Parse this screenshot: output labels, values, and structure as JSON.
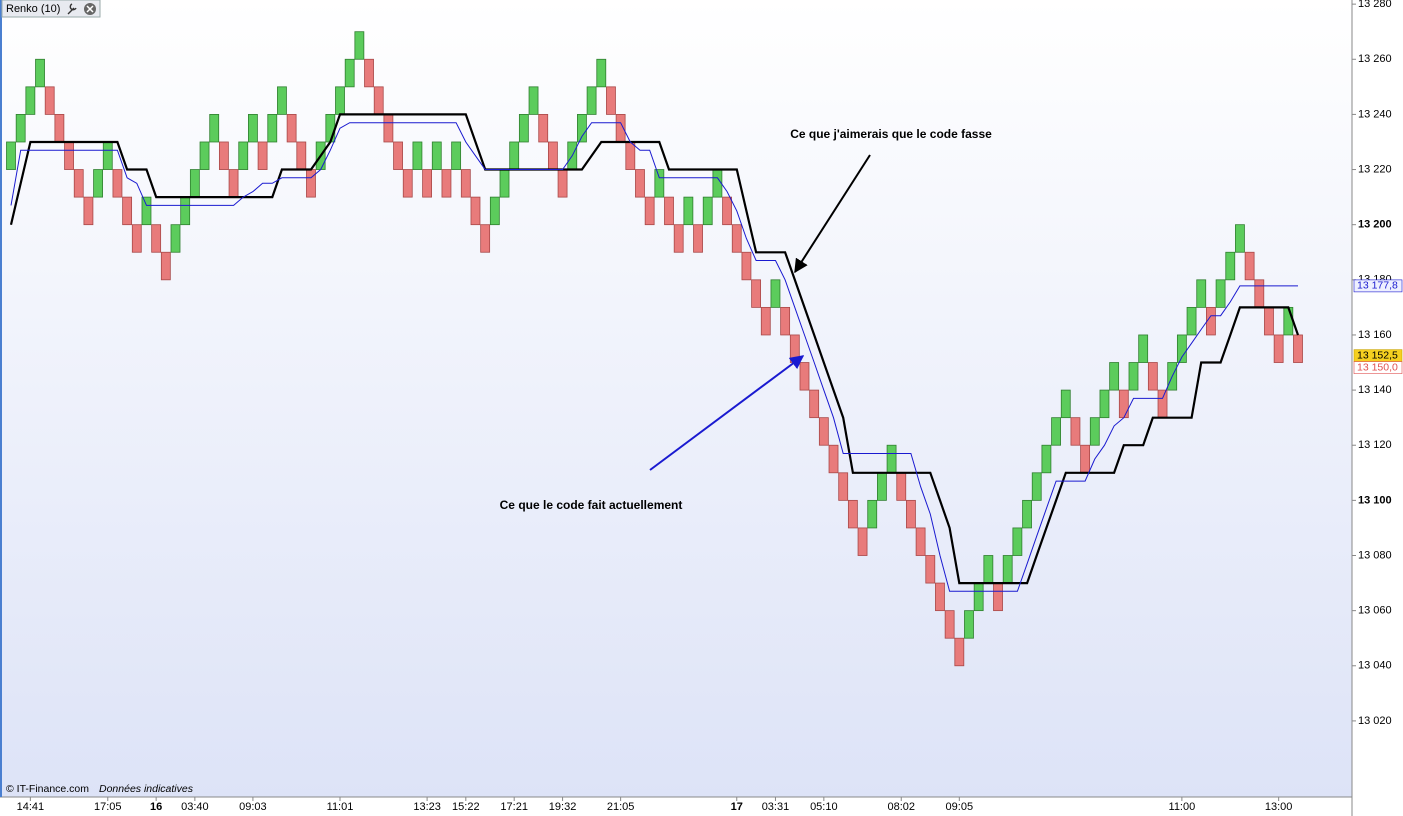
{
  "chart_data": {
    "type": "renko",
    "title": "Renko (10)",
    "footer": "© IT-Finance.com",
    "footer_note": "Données indicatives",
    "annotations": [
      {
        "text": "Ce que j'aimerais que le code fasse",
        "color": "#000000"
      },
      {
        "text": "Ce que le code fait actuellement",
        "color": "#1010d0"
      }
    ],
    "up_color": "#5ccc5c",
    "down_color": "#e87b7b",
    "categories": [
      null,
      null,
      "14:41",
      null,
      null,
      null,
      null,
      null,
      null,
      null,
      "17:05",
      null,
      null,
      null,
      null,
      "16",
      null,
      null,
      null,
      "03:40",
      null,
      null,
      null,
      null,
      null,
      "09:03",
      null,
      null,
      null,
      null,
      null,
      null,
      null,
      null,
      "11:01",
      null,
      null,
      null,
      null,
      null,
      null,
      null,
      null,
      "13:23",
      null,
      null,
      null,
      "15:22",
      null,
      null,
      null,
      null,
      "17:21",
      null,
      null,
      null,
      null,
      "19:32",
      null,
      null,
      null,
      null,
      null,
      "21:05",
      null,
      null,
      null,
      null,
      null,
      null,
      null,
      null,
      null,
      null,
      null,
      "17",
      null,
      null,
      null,
      "03:31",
      null,
      null,
      null,
      null,
      "05:10",
      null,
      null,
      null,
      null,
      null,
      null,
      null,
      "08:02",
      null,
      null,
      null,
      null,
      null,
      "09:05",
      null,
      null,
      null,
      null,
      null,
      null,
      null,
      null,
      null,
      null,
      null,
      null,
      null,
      null,
      null,
      null,
      null,
      null,
      null,
      null,
      null,
      null,
      "11:00",
      null,
      null,
      null,
      null,
      null,
      null,
      null,
      null,
      null,
      "13:00",
      null,
      null
    ],
    "open": [
      13220,
      13230,
      13240,
      13250,
      13250,
      13240,
      13230,
      13220,
      13210,
      13210,
      13220,
      13220,
      13210,
      13200,
      13200,
      13200,
      13190,
      13190,
      13200,
      13210,
      13220,
      13230,
      13230,
      13220,
      13220,
      13230,
      13230,
      13230,
      13240,
      13240,
      13230,
      13220,
      13220,
      13230,
      13240,
      13250,
      13260,
      13260,
      13250,
      13240,
      13230,
      13220,
      13220,
      13220,
      13220,
      13220,
      13220,
      13220,
      13210,
      13200,
      13200,
      13210,
      13220,
      13230,
      13240,
      13240,
      13230,
      13220,
      13220,
      13230,
      13240,
      13250,
      13250,
      13240,
      13230,
      13220,
      13210,
      13210,
      13210,
      13200,
      13200,
      13200,
      13200,
      13210,
      13210,
      13200,
      13190,
      13180,
      13170,
      13170,
      13170,
      13160,
      13150,
      13140,
      13130,
      13120,
      13110,
      13100,
      13090,
      13090,
      13100,
      13110,
      13110,
      13100,
      13090,
      13080,
      13070,
      13060,
      13050,
      13050,
      13060,
      13070,
      13070,
      13070,
      13080,
      13090,
      13100,
      13110,
      13120,
      13130,
      13130,
      13120,
      13120,
      13130,
      13140,
      13140,
      13140,
      13150,
      13150,
      13140,
      13140,
      13150,
      13160,
      13170,
      13170,
      13170,
      13180,
      13190,
      13190,
      13180,
      13170,
      13160,
      13160,
      13160
    ],
    "close": [
      13230,
      13240,
      13250,
      13260,
      13240,
      13230,
      13220,
      13210,
      13200,
      13220,
      13230,
      13210,
      13200,
      13190,
      13210,
      13190,
      13180,
      13200,
      13210,
      13220,
      13230,
      13240,
      13220,
      13210,
      13230,
      13240,
      13220,
      13240,
      13250,
      13230,
      13220,
      13210,
      13230,
      13240,
      13250,
      13260,
      13270,
      13250,
      13240,
      13230,
      13220,
      13210,
      13230,
      13210,
      13230,
      13210,
      13230,
      13210,
      13200,
      13190,
      13210,
      13220,
      13230,
      13240,
      13250,
      13230,
      13220,
      13210,
      13230,
      13240,
      13250,
      13260,
      13240,
      13230,
      13220,
      13210,
      13200,
      13220,
      13200,
      13190,
      13210,
      13190,
      13210,
      13220,
      13200,
      13190,
      13180,
      13170,
      13160,
      13180,
      13160,
      13150,
      13140,
      13130,
      13120,
      13110,
      13100,
      13090,
      13080,
      13100,
      13110,
      13120,
      13100,
      13090,
      13080,
      13070,
      13060,
      13050,
      13040,
      13060,
      13070,
      13080,
      13060,
      13080,
      13090,
      13100,
      13110,
      13120,
      13130,
      13140,
      13120,
      13110,
      13130,
      13140,
      13150,
      13130,
      13150,
      13160,
      13140,
      13130,
      13150,
      13160,
      13170,
      13180,
      13160,
      13180,
      13190,
      13200,
      13180,
      13170,
      13160,
      13150,
      13170,
      13150
    ],
    "series": [
      {
        "color": "#000000",
        "width": 2.2,
        "values": [
          13200,
          13215,
          13230,
          13230,
          13230,
          13230,
          13230,
          13230,
          13230,
          13230,
          13230,
          13230,
          13220,
          13220,
          13220,
          13210,
          13210,
          13210,
          13210,
          13210,
          13210,
          13210,
          13210,
          13210,
          13210,
          13210,
          13210,
          13210,
          13220,
          13220,
          13220,
          13220,
          13225,
          13230,
          13240,
          13240,
          13240,
          13240,
          13240,
          13240,
          13240,
          13240,
          13240,
          13240,
          13240,
          13240,
          13240,
          13240,
          13230,
          13220,
          13220,
          13220,
          13220,
          13220,
          13220,
          13220,
          13220,
          13220,
          13220,
          13220,
          13225,
          13230,
          13230,
          13230,
          13230,
          13230,
          13230,
          13230,
          13220,
          13220,
          13220,
          13220,
          13220,
          13220,
          13220,
          13220,
          13205,
          13190,
          13190,
          13190,
          13190,
          13180,
          13170,
          13160,
          13150,
          13140,
          13130,
          13110,
          13110,
          13110,
          13110,
          13110,
          13110,
          13110,
          13110,
          13110,
          13100,
          13090,
          13070,
          13070,
          13070,
          13070,
          13070,
          13070,
          13070,
          13070,
          13080,
          13090,
          13100,
          13110,
          13110,
          13110,
          13110,
          13110,
          13110,
          13120,
          13120,
          13120,
          13130,
          13130,
          13130,
          13130,
          13130,
          13150,
          13150,
          13150,
          13160,
          13170,
          13170,
          13170,
          13170,
          13170,
          13170,
          13160
        ]
      },
      {
        "color": "#1a1ad0",
        "width": 1,
        "values": [
          13207,
          13227,
          13227,
          13227,
          13227,
          13227,
          13227,
          13227,
          13227,
          13227,
          13227,
          13227,
          13217,
          13215,
          13207,
          13207,
          13207,
          13207,
          13207,
          13207,
          13207,
          13207,
          13207,
          13207,
          13210,
          13212,
          13215,
          13215,
          13217,
          13217,
          13217,
          13217,
          13220,
          13227,
          13235,
          13237,
          13237,
          13237,
          13237,
          13237,
          13237,
          13237,
          13237,
          13237,
          13237,
          13237,
          13237,
          13230,
          13225,
          13220,
          13220,
          13220,
          13220,
          13220,
          13220,
          13220,
          13220,
          13220,
          13225,
          13232,
          13237,
          13237,
          13237,
          13237,
          13230,
          13227,
          13227,
          13217,
          13217,
          13217,
          13217,
          13217,
          13217,
          13217,
          13212,
          13205,
          13195,
          13187,
          13187,
          13187,
          13180,
          13170,
          13160,
          13150,
          13140,
          13130,
          13117,
          13117,
          13117,
          13117,
          13117,
          13117,
          13117,
          13117,
          13105,
          13095,
          13080,
          13067,
          13067,
          13067,
          13067,
          13067,
          13067,
          13067,
          13067,
          13077,
          13087,
          13097,
          13107,
          13107,
          13107,
          13107,
          13115,
          13120,
          13127,
          13130,
          13137,
          13137,
          13137,
          13137,
          13145,
          13152,
          13157,
          13162,
          13167,
          13167,
          13172,
          13177.8,
          13177.8,
          13177.8,
          13177.8,
          13177.8,
          13177.8,
          13177.8
        ]
      }
    ],
    "axis_markers": [
      {
        "value": 13177.8,
        "label": "13 177,8",
        "color": "#1a1ad0",
        "background": "#eef0ff"
      },
      {
        "value": 13152.5,
        "label": "13 152,5",
        "color": "#000000",
        "background": "#f5d020"
      },
      {
        "value": 13150,
        "label": "13 150,0",
        "color": "#e05050",
        "background": "#ffffff"
      }
    ],
    "ylim": [
      12992.4,
      13281.5
    ],
    "yticks": [
      {
        "value": 13020,
        "label": "13 020"
      },
      {
        "value": 13040,
        "label": "13 040"
      },
      {
        "value": 13060,
        "label": "13 060"
      },
      {
        "value": 13080,
        "label": "13 080"
      },
      {
        "value": 13100,
        "label": "13 100"
      },
      {
        "value": 13120,
        "label": "13 120"
      },
      {
        "value": 13140,
        "label": "13 140"
      },
      {
        "value": 13160,
        "label": "13 160"
      },
      {
        "value": 13180,
        "label": "13 180"
      },
      {
        "value": 13200,
        "label": "13 200"
      },
      {
        "value": 13220,
        "label": "13 220"
      },
      {
        "value": 13240,
        "label": "13 240"
      },
      {
        "value": 13260,
        "label": "13 260"
      },
      {
        "value": 13280,
        "label": "13 280"
      }
    ]
  }
}
